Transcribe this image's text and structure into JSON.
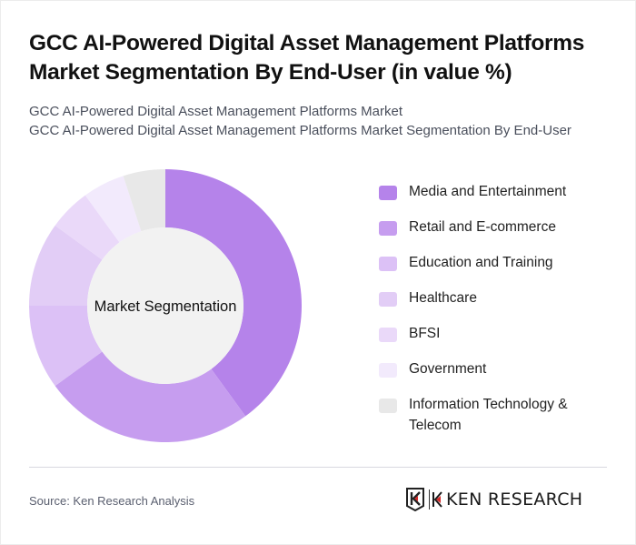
{
  "header": {
    "title": "GCC AI-Powered Digital Asset Management Platforms Market Segmentation By End-User (in value %)",
    "subtitle_line1": "GCC AI-Powered Digital Asset Management Platforms Market",
    "subtitle_line2": "GCC AI-Powered Digital Asset Management Platforms Market Segmentation By End-User"
  },
  "chart": {
    "center_label": "Market Segmentation"
  },
  "legend": {
    "items": [
      {
        "label": "Media and Entertainment",
        "color": "#b583ea"
      },
      {
        "label": "Retail and E-commerce",
        "color": "#c69def"
      },
      {
        "label": "Education and Training",
        "color": "#dcc1f6"
      },
      {
        "label": "Healthcare",
        "color": "#e2cdf6"
      },
      {
        "label": "BFSI",
        "color": "#ead9f9"
      },
      {
        "label": "Government",
        "color": "#f2eafc"
      },
      {
        "label": "Information Technology & Telecom",
        "color": "#e8e8e8"
      }
    ]
  },
  "footer": {
    "source": "Source: Ken Research Analysis",
    "logo_text": "KEN RESEARCH"
  },
  "chart_data": {
    "type": "pie",
    "variant": "donut",
    "title": "GCC AI-Powered Digital Asset Management Platforms Market Segmentation By End-User (in value %)",
    "center_label": "Market Segmentation",
    "categories": [
      "Media and Entertainment",
      "Retail and E-commerce",
      "Education and Training",
      "Healthcare",
      "BFSI",
      "Government",
      "Information Technology & Telecom"
    ],
    "values": [
      40,
      25,
      10,
      10,
      5,
      5,
      5
    ],
    "colors": [
      "#b583ea",
      "#c69def",
      "#dcc1f6",
      "#e2cdf6",
      "#ead9f9",
      "#f2eafc",
      "#e8e8e8"
    ],
    "unit": "%",
    "legend_position": "right",
    "start_angle": 0,
    "direction": "clockwise"
  }
}
